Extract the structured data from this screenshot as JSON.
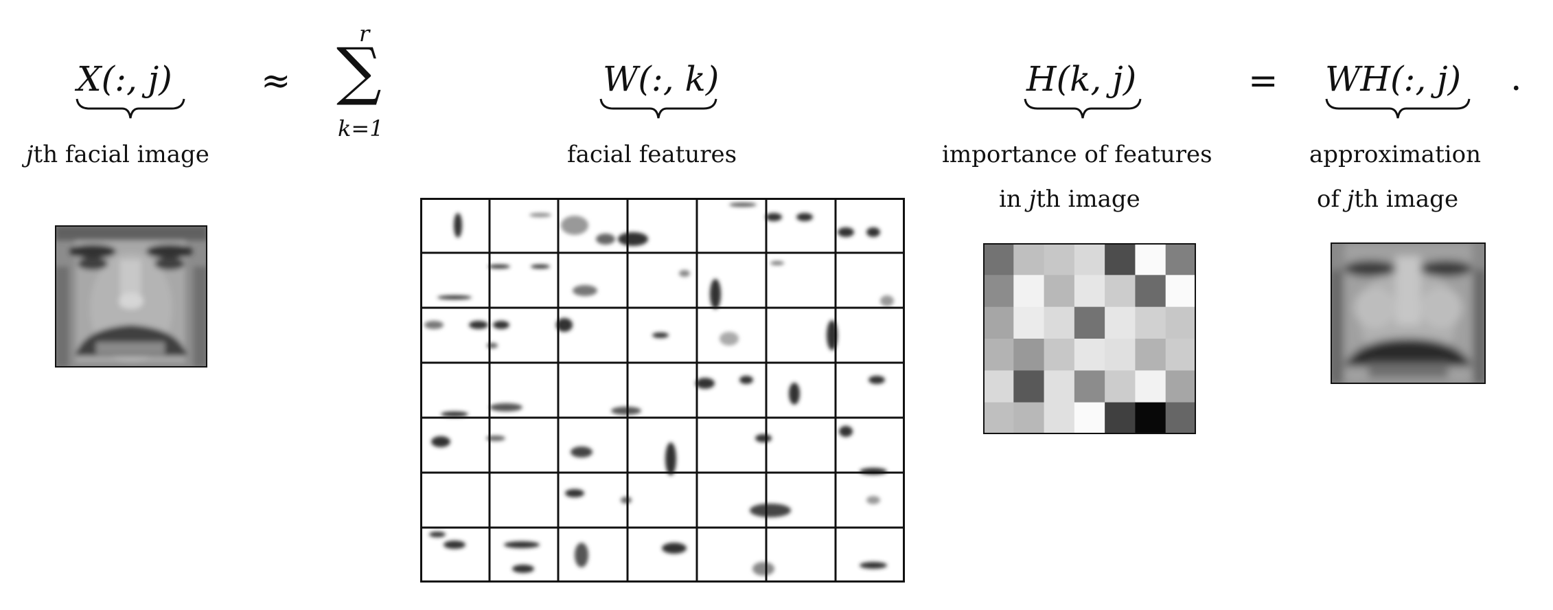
{
  "terms": {
    "x_term": "X(:, j)",
    "w_term": "W(:, k)",
    "h_term": "H(k, j)",
    "wh_term": "WH(:, j)"
  },
  "operators": {
    "approx": "≈",
    "sum": "∑",
    "sum_upper": "r",
    "sum_lower": "k=1",
    "equals": "=",
    "period": "."
  },
  "labels": {
    "x_label_var": "j",
    "x_label_rest": "th facial image",
    "w_label": "facial features",
    "h_label_line1": "importance of features",
    "h_label_line2_pre": "in ",
    "h_label_line2_var": "j",
    "h_label_line2_post": "th image",
    "wh_label_line1": "approximation",
    "wh_label_line2_pre": "of ",
    "wh_label_line2_var": "j",
    "wh_label_line2_post": "th image"
  },
  "h_matrix": {
    "rows": 6,
    "cols": 7,
    "gray": [
      [
        0.45,
        0.75,
        0.78,
        0.85,
        0.3,
        0.98,
        0.5
      ],
      [
        0.55,
        0.95,
        0.72,
        0.9,
        0.8,
        0.42,
        0.98
      ],
      [
        0.65,
        0.92,
        0.86,
        0.45,
        0.9,
        0.82,
        0.78
      ],
      [
        0.7,
        0.6,
        0.78,
        0.9,
        0.88,
        0.7,
        0.8
      ],
      [
        0.85,
        0.35,
        0.88,
        0.55,
        0.8,
        0.95,
        0.65
      ],
      [
        0.75,
        0.72,
        0.88,
        0.98,
        0.25,
        0.03,
        0.4
      ]
    ]
  }
}
